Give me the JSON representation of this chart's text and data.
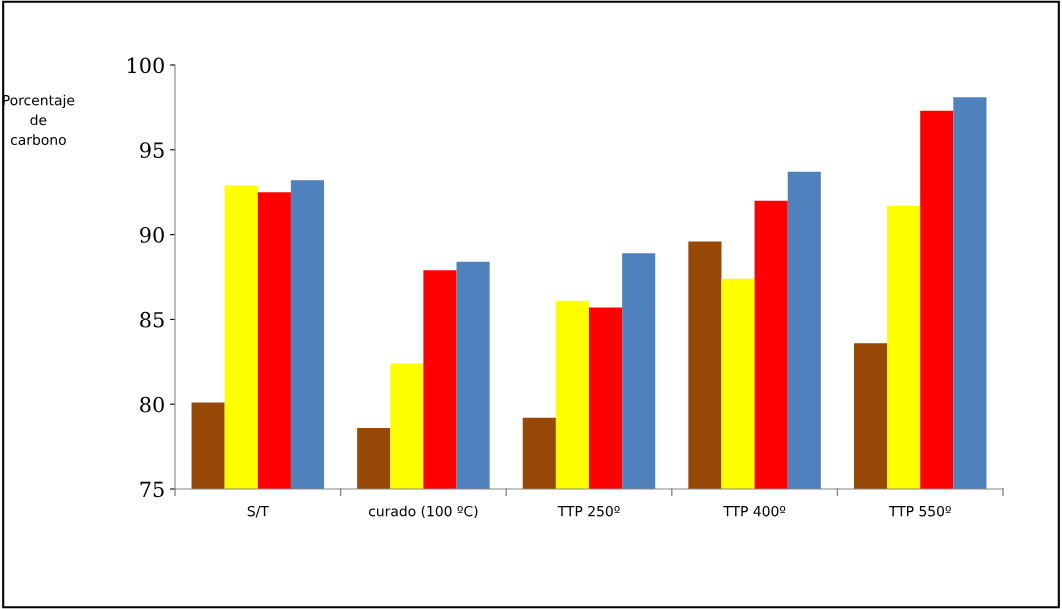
{
  "chart_data": {
    "type": "bar",
    "ylabel": "Porcentaje\nde\ncarbono",
    "categories": [
      "S/T",
      "curado (100 ºC)",
      "TTP 250º",
      "TTP 400º",
      "TTP 550º"
    ],
    "series": [
      {
        "color": "#974706",
        "values": [
          80.1,
          78.6,
          79.2,
          89.6,
          83.6
        ]
      },
      {
        "color": "#ffff00",
        "values": [
          92.9,
          82.4,
          86.1,
          87.4,
          91.7
        ]
      },
      {
        "color": "#ff0000",
        "values": [
          92.5,
          87.9,
          85.7,
          92.0,
          97.3
        ]
      },
      {
        "color": "#4f81bd",
        "values": [
          93.2,
          88.4,
          88.9,
          93.7,
          98.1
        ]
      }
    ],
    "ylim": [
      75,
      100
    ],
    "yticks": [
      75,
      80,
      85,
      90,
      95,
      100
    ],
    "grid": false,
    "legend": false
  }
}
